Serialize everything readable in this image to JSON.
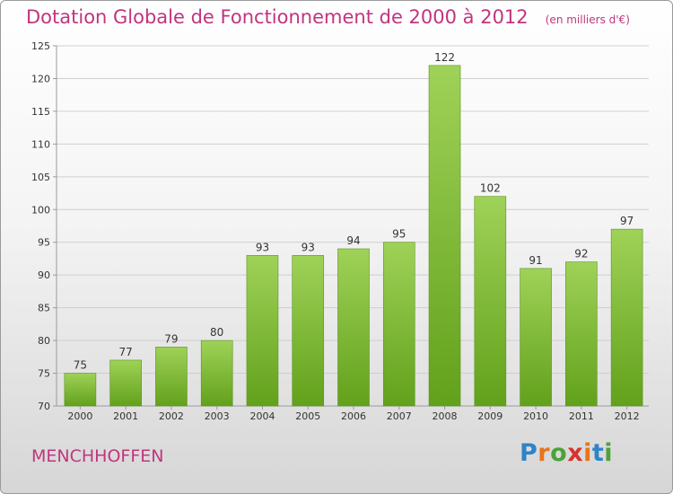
{
  "title": "Dotation Globale de Fonctionnement de 2000 à 2012",
  "unit_note": "(en milliers d'€)",
  "commune": "MENCHHOFFEN",
  "logo": {
    "text": "Proxiti",
    "letter_colors": [
      "#2f84c8",
      "#e8741c",
      "#4aa337",
      "#d9312d",
      "#e8741c",
      "#2f84c8",
      "#4aa337"
    ]
  },
  "colors": {
    "title": "#c0357e",
    "bar_light": "#9fd258",
    "bar_dark": "#62a11b",
    "grid": "#cfcfcf",
    "axis": "#9a9a9a"
  },
  "chart_data": {
    "type": "bar",
    "categories": [
      "2000",
      "2001",
      "2002",
      "2003",
      "2004",
      "2005",
      "2006",
      "2007",
      "2008",
      "2009",
      "2010",
      "2011",
      "2012"
    ],
    "values": [
      75,
      77,
      79,
      80,
      93,
      93,
      94,
      95,
      122,
      102,
      91,
      92,
      97
    ],
    "ylim": [
      70,
      125
    ],
    "yticks": [
      70,
      75,
      80,
      85,
      90,
      95,
      100,
      105,
      110,
      115,
      120,
      125
    ],
    "grid": true,
    "legend": "none"
  }
}
